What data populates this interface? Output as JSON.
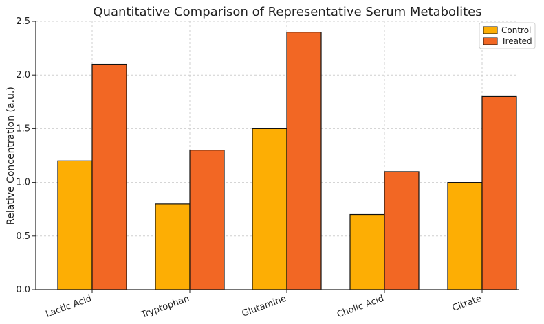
{
  "chart_data": {
    "type": "bar",
    "title": "Quantitative Comparison of Representative Serum Metabolites",
    "xlabel": "",
    "ylabel": "Relative Concentration (a.u.)",
    "categories": [
      "Lactic Acid",
      "Tryptophan",
      "Glutamine",
      "Cholic Acid",
      "Citrate"
    ],
    "series": [
      {
        "name": "Control",
        "values": [
          1.2,
          0.8,
          1.5,
          0.7,
          1.0
        ],
        "color": "#FDAE04"
      },
      {
        "name": "Treated",
        "values": [
          2.1,
          1.3,
          2.4,
          1.1,
          1.8
        ],
        "color": "#F26724"
      }
    ],
    "ylim": [
      0,
      2.5
    ],
    "yticks": [
      "0.0",
      "0.5",
      "1.0",
      "1.5",
      "2.0",
      "2.5"
    ],
    "grid": true,
    "legend_position": "top-right"
  }
}
